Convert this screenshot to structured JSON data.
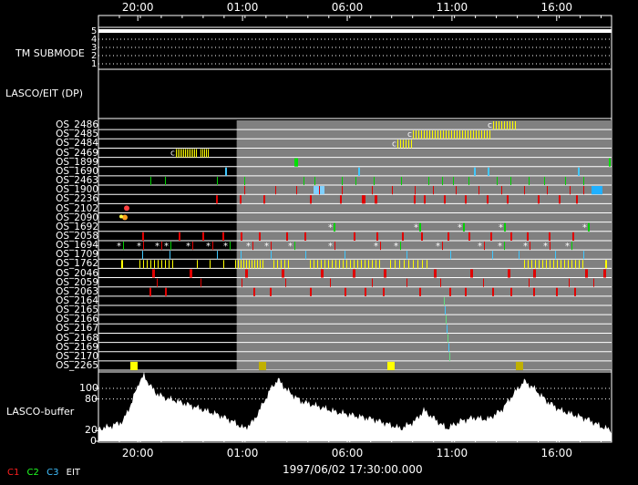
{
  "time_axis": {
    "ticks": [
      "20:00",
      "01:00",
      "06:00",
      "11:00",
      "16:00"
    ],
    "hours_from_start": [
      1.88,
      6.88,
      11.88,
      16.88,
      21.88
    ],
    "range_hours": [
      0,
      24.5
    ],
    "datestamp": "1997/06/02 17:30:00.000"
  },
  "tm_submode": {
    "label": "TM SUBMODE",
    "levels": [
      "5",
      "4",
      "3",
      "2",
      "1"
    ],
    "value": 5
  },
  "lasco_eit_panel": {
    "label": "LASCO/EIT (DP)"
  },
  "os_rows": [
    "OS_2486",
    "OS_2485",
    "OS_2484",
    "OS_2469",
    "OS_1899",
    "OS_1690",
    "OS_2463",
    "OS_1900",
    "OS_2236",
    "OS_2102",
    "OS_2090",
    "OS_1692",
    "OS_2058",
    "OS_1694",
    "OS_1709",
    "OS_1762",
    "OS_2046",
    "OS_2059",
    "OS_2063",
    "OS_2164",
    "OS_2165",
    "OS_2166",
    "OS_2167",
    "OS_2168",
    "OS_2169",
    "OS_2170",
    "OS_2265"
  ],
  "shaded_region_start_hours": 6.6,
  "lasco_buffer": {
    "label": "LASCO-buffer",
    "y_ticks": [
      "100",
      "80",
      "20",
      "0"
    ],
    "y_values": [
      100,
      80,
      20,
      0
    ]
  },
  "legend": [
    {
      "label": "C1",
      "color": "#ff2020"
    },
    {
      "label": "C2",
      "color": "#20ff20"
    },
    {
      "label": "C3",
      "color": "#40c0ff"
    },
    {
      "label": "EIT",
      "color": "#ffffff"
    }
  ],
  "colors": {
    "grid": "#ffffff",
    "shade": "#808080",
    "yellow": "#ffff00",
    "red": "#e00000",
    "green": "#00d000",
    "cyan": "#40c8ff",
    "olive": "#c0b000"
  }
}
